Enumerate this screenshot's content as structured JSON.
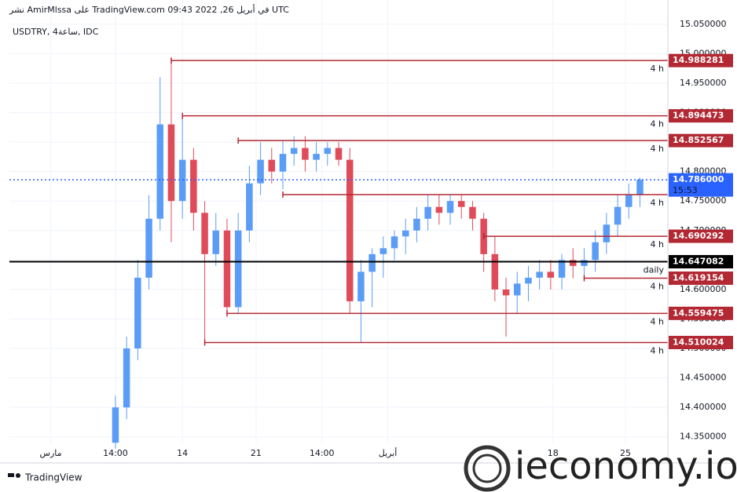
{
  "chart_data": {
    "type": "candlestick",
    "header": "نشر AmirMlssa على TradingView.com في أبريل 26, 2022 09:43 UTC",
    "symbol": "USDTRY, 4ساعة, IDC",
    "brand": "TradingView",
    "watermark": "ieconomy.io",
    "up_color": "#5b9cf6",
    "down_color": "#e04b5a",
    "level_color": "#b22833",
    "grid": true,
    "xlim": [
      -9.5,
      49.5
    ],
    "xticks": [
      {
        "value": -5.8,
        "label": "مارس"
      },
      {
        "value": 0,
        "label": "14:00"
      },
      {
        "value": 6,
        "label": "14"
      },
      {
        "value": 12.6,
        "label": "21"
      },
      {
        "value": 18.5,
        "label": "14:00"
      },
      {
        "value": 24.4,
        "label": "أبريل"
      },
      {
        "value": 39.2,
        "label": "18"
      },
      {
        "value": 45.7,
        "label": "25"
      }
    ],
    "ylim": [
      14.339,
      15.091
    ],
    "yticks": [
      {
        "value": 14.35,
        "label": "14.350000"
      },
      {
        "value": 14.4,
        "label": "14.400000"
      },
      {
        "value": 14.45,
        "label": "14.450000"
      },
      {
        "value": 14.5,
        "label": "14.500000"
      },
      {
        "value": 14.55,
        "label": "14.550000"
      },
      {
        "value": 14.6,
        "label": "14.600000"
      },
      {
        "value": 14.65,
        "label": "14.650000"
      },
      {
        "value": 14.7,
        "label": "14.700000"
      },
      {
        "value": 14.75,
        "label": "14.750000"
      },
      {
        "value": 14.8,
        "label": "14.800000"
      },
      {
        "value": 14.85,
        "label": "14.850000"
      },
      {
        "value": 14.9,
        "label": "14.900000"
      },
      {
        "value": 14.95,
        "label": "14.950000"
      },
      {
        "value": 15.0,
        "label": "15.000000"
      },
      {
        "value": 15.05,
        "label": "15.050000"
      }
    ],
    "open": [
      14.34,
      14.4,
      14.5,
      14.62,
      14.72,
      14.88,
      14.75,
      14.82,
      14.73,
      14.66,
      14.7,
      14.57,
      14.7,
      14.78,
      14.82,
      14.8,
      14.83,
      14.84,
      14.82,
      14.83,
      14.84,
      14.82,
      14.58,
      14.63,
      14.66,
      14.67,
      14.69,
      14.7,
      14.72,
      14.74,
      14.73,
      14.75,
      14.74,
      14.72,
      14.66,
      14.6,
      14.59,
      14.61,
      14.62,
      14.63,
      14.62,
      14.65,
      14.64,
      14.65,
      14.68,
      14.71,
      14.74,
      14.76
    ],
    "high": [
      14.42,
      14.52,
      14.65,
      14.76,
      14.96,
      14.988,
      14.894,
      14.84,
      14.75,
      14.73,
      14.72,
      14.73,
      14.81,
      14.85,
      14.84,
      14.852,
      14.86,
      14.86,
      14.85,
      14.85,
      14.85,
      14.84,
      14.65,
      14.67,
      14.69,
      14.7,
      14.72,
      14.74,
      14.76,
      14.76,
      14.76,
      14.76,
      14.75,
      14.73,
      14.69,
      14.62,
      14.63,
      14.64,
      14.65,
      14.65,
      14.66,
      14.67,
      14.67,
      14.7,
      14.73,
      14.76,
      14.78,
      14.79
    ],
    "low": [
      14.33,
      14.38,
      14.48,
      14.6,
      14.7,
      14.68,
      14.72,
      14.7,
      14.51,
      14.64,
      14.555,
      14.56,
      14.68,
      14.76,
      14.78,
      14.77,
      14.81,
      14.8,
      14.8,
      14.81,
      14.81,
      14.56,
      14.51,
      14.57,
      14.62,
      14.65,
      14.66,
      14.68,
      14.7,
      14.71,
      14.71,
      14.72,
      14.7,
      14.63,
      14.58,
      14.52,
      14.56,
      14.58,
      14.6,
      14.6,
      14.6,
      14.619,
      14.62,
      14.63,
      14.66,
      14.69,
      14.72,
      14.74
    ],
    "close": [
      14.4,
      14.5,
      14.62,
      14.72,
      14.88,
      14.75,
      14.82,
      14.73,
      14.66,
      14.7,
      14.57,
      14.7,
      14.78,
      14.82,
      14.8,
      14.83,
      14.84,
      14.82,
      14.83,
      14.84,
      14.82,
      14.58,
      14.63,
      14.66,
      14.67,
      14.69,
      14.7,
      14.72,
      14.74,
      14.73,
      14.75,
      14.74,
      14.72,
      14.66,
      14.6,
      14.59,
      14.61,
      14.62,
      14.63,
      14.62,
      14.65,
      14.64,
      14.65,
      14.68,
      14.71,
      14.74,
      14.76,
      14.786
    ],
    "levels": [
      {
        "value": 14.988281,
        "label": "14.988281",
        "tf": "4 h",
        "start": 5
      },
      {
        "value": 14.894473,
        "label": "14.894473",
        "tf": "4 h",
        "start": 6
      },
      {
        "value": 14.852567,
        "label": "14.852567",
        "tf": "4 h",
        "start": 11
      },
      {
        "value": 14.761,
        "tf": "4 h",
        "start": 15
      },
      {
        "value": 14.690292,
        "label": "14.690292",
        "tf": "4 h",
        "start": 33
      },
      {
        "value": 14.619154,
        "label": "14.619154",
        "tf": "4 h",
        "start": 42
      },
      {
        "value": 14.559475,
        "label": "14.559475",
        "tf": "4 h",
        "start": 10
      },
      {
        "value": 14.510024,
        "label": "14.510024",
        "tf": "4 h",
        "start": 8
      }
    ],
    "daily": {
      "value": 14.647082,
      "label": "14.647082",
      "tf": "daily"
    },
    "current": {
      "value": 14.786,
      "label": "14.786000",
      "countdown": "15:53",
      "color": "#2962ff"
    }
  }
}
